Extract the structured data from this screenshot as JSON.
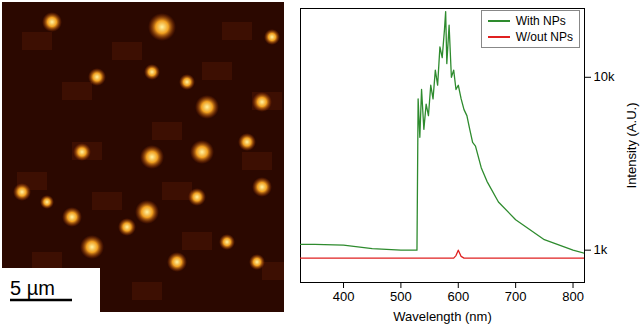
{
  "image": {
    "scale_bar": "5 µm"
  },
  "chart_data": {
    "type": "line",
    "xlabel": "Wavelength (nm)",
    "ylabel": "Intensity (A.U.)",
    "log": "y",
    "legend": "upper right",
    "xlim": [
      325,
      820
    ],
    "xticks": [
      400,
      500,
      600,
      700,
      800
    ],
    "ylim": [
      650,
      25000
    ],
    "yticks": [
      {
        "value": 1000,
        "label": "1k"
      },
      {
        "value": 10000,
        "label": "10k"
      }
    ],
    "x": [
      325,
      350,
      400,
      450,
      500,
      525,
      528,
      530,
      533,
      536,
      540,
      544,
      548,
      552,
      556,
      560,
      564,
      568,
      572,
      576,
      578,
      580,
      584,
      588,
      592,
      596,
      600,
      605,
      610,
      615,
      620,
      625,
      630,
      640,
      650,
      670,
      700,
      750,
      800,
      820
    ],
    "series": [
      {
        "name": "With NPs",
        "color": "#2e8b2e",
        "values": [
          1080,
          1080,
          1070,
          1020,
          1000,
          1000,
          1000,
          7500,
          4500,
          8500,
          5000,
          7000,
          6000,
          9000,
          7500,
          11000,
          9000,
          15000,
          13000,
          19000,
          24000,
          12000,
          20000,
          10000,
          11000,
          8500,
          9000,
          7500,
          6500,
          6000,
          5000,
          4200,
          4000,
          3000,
          2500,
          1900,
          1500,
          1150,
          1000,
          960
        ]
      },
      {
        "name": "W/out NPs",
        "color": "#e02020",
        "values": [
          900,
          900,
          900,
          900,
          900,
          900,
          900,
          900,
          900,
          900,
          900,
          900,
          900,
          900,
          900,
          900,
          900,
          900,
          900,
          900,
          900,
          900,
          900,
          900,
          900,
          930,
          1000,
          920,
          900,
          900,
          900,
          900,
          900,
          900,
          900,
          900,
          900,
          900,
          900,
          900
        ]
      }
    ]
  }
}
